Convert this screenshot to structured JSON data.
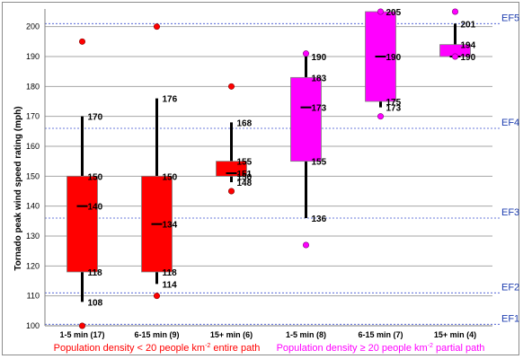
{
  "chart_data": {
    "type": "box",
    "ylabel": "Tornado peak wind speed rating (mph)",
    "ylim": [
      100,
      205
    ],
    "yticks": [
      100,
      110,
      120,
      130,
      140,
      150,
      160,
      170,
      180,
      190,
      200
    ],
    "grid": true,
    "categories": [
      "1-5 min (17)",
      "6-15 min (9)",
      "15+ min (6)",
      "1-5 min (8)",
      "6-15 min (7)",
      "15+ min (4)"
    ],
    "groups": [
      {
        "label": "Population density < 20 people km-2 entire path",
        "label_parts": [
          "Population density < 20 people km",
          "-2",
          " entire path"
        ],
        "color": "#ff0000",
        "boxes": [
          {
            "category": "1-5 min (17)",
            "whisker_low": 108,
            "q1": 118,
            "median": 140,
            "q3": 150,
            "whisker_high": 170,
            "outliers": [
              100,
              195
            ],
            "labels": [
              {
                "text": "170",
                "value": 170
              },
              {
                "text": "150",
                "value": 150
              },
              {
                "text": "140",
                "value": 140
              },
              {
                "text": "118",
                "value": 118
              },
              {
                "text": "108",
                "value": 108
              }
            ]
          },
          {
            "category": "6-15 min (9)",
            "whisker_low": 114,
            "q1": 118,
            "median": 134,
            "q3": 150,
            "whisker_high": 176,
            "outliers": [
              110,
              200
            ],
            "labels": [
              {
                "text": "176",
                "value": 176
              },
              {
                "text": "150",
                "value": 150
              },
              {
                "text": "134",
                "value": 134
              },
              {
                "text": "118",
                "value": 118
              },
              {
                "text": "114",
                "value": 114
              }
            ]
          },
          {
            "category": "15+ min (6)",
            "whisker_low": 148,
            "q1": 150,
            "median": 151,
            "q3": 155,
            "whisker_high": 168,
            "outliers": [
              145,
              180
            ],
            "labels": [
              {
                "text": "168",
                "value": 168
              },
              {
                "text": "155",
                "value": 155
              },
              {
                "text": "151",
                "value": 151
              },
              {
                "text": "150",
                "value": 150
              },
              {
                "text": "148",
                "value": 148
              }
            ]
          }
        ]
      },
      {
        "label": "Population density ≥ 20 people km-2 partial path",
        "label_parts": [
          "Population density ≥ 20 people km",
          "-2",
          " partial path"
        ],
        "color": "#ff00ff",
        "boxes": [
          {
            "category": "1-5 min (8)",
            "whisker_low": 136,
            "q1": 155,
            "median": 173,
            "q3": 183,
            "whisker_high": 190,
            "outliers": [
              127,
              191
            ],
            "labels": [
              {
                "text": "190",
                "value": 190
              },
              {
                "text": "183",
                "value": 183
              },
              {
                "text": "173",
                "value": 173
              },
              {
                "text": "155",
                "value": 155
              },
              {
                "text": "136",
                "value": 136
              }
            ]
          },
          {
            "category": "6-15 min (7)",
            "whisker_low": 173,
            "q1": 175,
            "median": 190,
            "q3": 205,
            "whisker_high": 205,
            "outliers": [
              170,
              205
            ],
            "labels": [
              {
                "text": "205",
                "value": 205
              },
              {
                "text": "190",
                "value": 190
              },
              {
                "text": "175",
                "value": 175
              },
              {
                "text": "173",
                "value": 173
              }
            ]
          },
          {
            "category": "15+ min (4)",
            "whisker_low": 190,
            "q1": 190,
            "median": 190,
            "q3": 194,
            "whisker_high": 201,
            "outliers": [
              205,
              190
            ],
            "labels": [
              {
                "text": "201",
                "value": 201
              },
              {
                "text": "194",
                "value": 194
              },
              {
                "text": "190",
                "value": 190
              }
            ]
          }
        ]
      }
    ],
    "reference_lines": [
      {
        "label": "EF1",
        "value": 100.5
      },
      {
        "label": "EF2",
        "value": 111
      },
      {
        "label": "EF3",
        "value": 136
      },
      {
        "label": "EF4",
        "value": 166
      },
      {
        "label": "EF5",
        "value": 201
      }
    ]
  },
  "colors": {
    "grid": "#a6a6a6",
    "ref_line": "#3a4fd0",
    "ef_text": "#1f3fb0",
    "whisker": "#000000"
  }
}
